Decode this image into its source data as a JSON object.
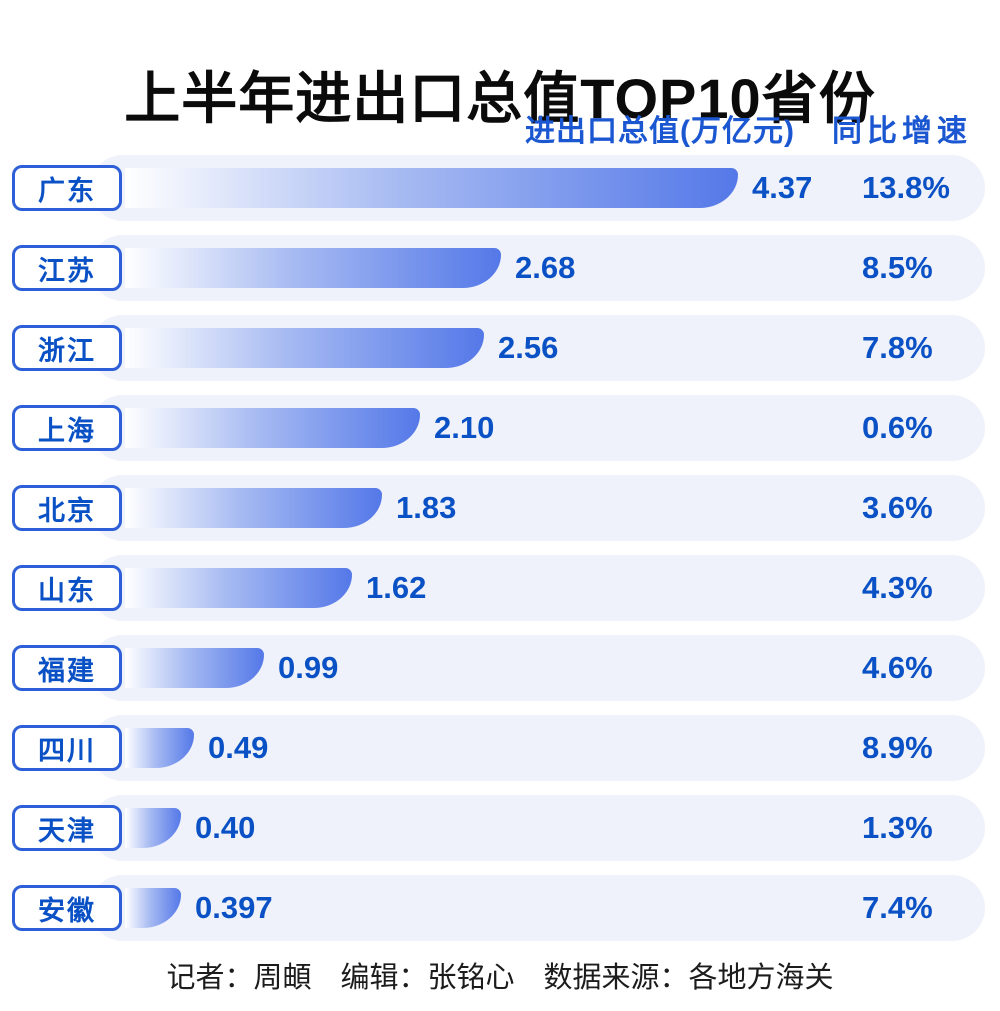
{
  "title": "上半年进出口总值TOP10省份",
  "columns": {
    "value_header": "进出口总值(万亿元)",
    "growth_header": "同比增速"
  },
  "footer": {
    "text": "记者：周頔　编辑：张铭心　数据来源：各地方海关"
  },
  "colors": {
    "bar_blue": "#5478e8",
    "bar_gradient_start": "#ffffff",
    "row_pill_bg": "#eff2fa",
    "label_border_blue": "#2e5fd8",
    "text_blue": "#0b51c6",
    "header_blue": "#1c57d2",
    "title_black": "#0b0b0b"
  },
  "chart_data": {
    "type": "bar",
    "orientation": "horizontal",
    "title": "上半年进出口总值TOP10省份",
    "categories": [
      "广东",
      "江苏",
      "浙江",
      "上海",
      "北京",
      "山东",
      "福建",
      "四川",
      "天津",
      "安徽"
    ],
    "series": [
      {
        "name": "进出口总值(万亿元)",
        "values": [
          4.37,
          2.68,
          2.56,
          2.1,
          1.83,
          1.62,
          0.99,
          0.49,
          0.4,
          0.397
        ]
      },
      {
        "name": "同比增速",
        "values": [
          "13.8%",
          "8.5%",
          "7.8%",
          "0.6%",
          "3.6%",
          "4.3%",
          "4.6%",
          "8.9%",
          "1.3%",
          "7.4%"
        ]
      }
    ],
    "value_labels": [
      "4.37",
      "2.68",
      "2.56",
      "2.10",
      "1.83",
      "1.62",
      "0.99",
      "0.49",
      "0.40",
      "0.397"
    ],
    "xlim": [
      0,
      4.37
    ],
    "grid": false,
    "legend_position": "top",
    "bar_style": "gradient-swoosh"
  }
}
